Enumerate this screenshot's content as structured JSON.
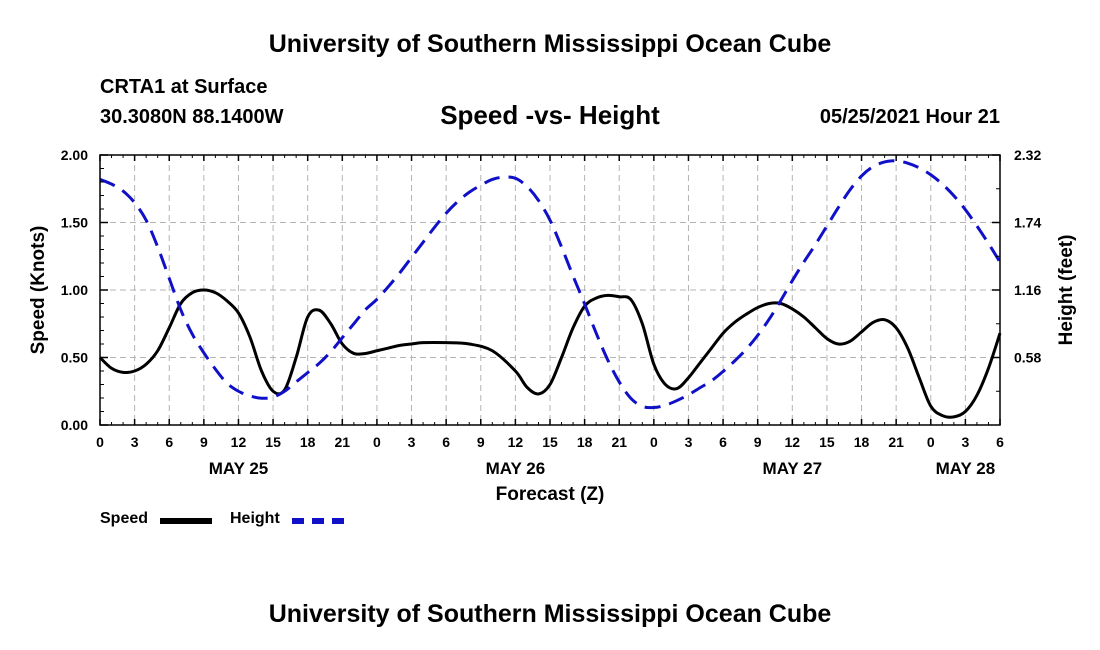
{
  "header": {
    "title": "University of Southern Mississippi Ocean Cube",
    "station": "CRTA1 at Surface",
    "coordinates": "30.3080N  88.1400W",
    "chart_title": "Speed -vs- Height",
    "datetime": "05/25/2021 Hour 21"
  },
  "footer": {
    "title": "University of Southern Mississippi Ocean Cube"
  },
  "legend": {
    "speed_label": "Speed",
    "height_label": "Height"
  },
  "colors": {
    "speed": "#000000",
    "height": "#1010c8",
    "grid": "#b4b4b4"
  },
  "chart_data": {
    "type": "line",
    "title": "Speed -vs- Height",
    "xlabel": "Forecast (Z)",
    "ylabel": "Speed (Knots)",
    "y2label": "Height (feet)",
    "xlim": [
      0,
      78
    ],
    "ylim": [
      0,
      2.0
    ],
    "y2lim": [
      0,
      2.32
    ],
    "grid": true,
    "x_ticks": [
      0,
      3,
      6,
      9,
      12,
      15,
      18,
      21,
      24,
      27,
      30,
      33,
      36,
      39,
      42,
      45,
      48,
      51,
      54,
      57,
      60,
      63,
      66,
      69,
      72,
      75,
      78
    ],
    "x_tick_labels": [
      "0",
      "3",
      "6",
      "9",
      "12",
      "15",
      "18",
      "21",
      "0",
      "3",
      "6",
      "9",
      "12",
      "15",
      "18",
      "21",
      "0",
      "3",
      "6",
      "9",
      "12",
      "15",
      "18",
      "21",
      "0",
      "3",
      "6"
    ],
    "day_labels": [
      {
        "x": 12,
        "label": "MAY 25"
      },
      {
        "x": 36,
        "label": "MAY 26"
      },
      {
        "x": 60,
        "label": "MAY 27"
      },
      {
        "x": 75,
        "label": "MAY 28"
      }
    ],
    "y_ticks": [
      0.0,
      0.5,
      1.0,
      1.5,
      2.0
    ],
    "y_tick_labels": [
      "0.00",
      "0.50",
      "1.00",
      "1.50",
      "2.00"
    ],
    "y2_ticks": [
      0.58,
      1.16,
      1.74,
      2.32
    ],
    "y2_tick_labels": [
      "0.58",
      "1.16",
      "1.74",
      "2.32"
    ],
    "series": [
      {
        "name": "Speed",
        "axis": "left",
        "x": [
          0,
          1,
          2,
          3,
          4,
          5,
          6,
          7,
          8,
          9,
          10,
          11,
          12,
          13,
          14,
          15,
          16,
          17,
          18,
          19,
          20,
          21,
          22,
          23,
          24,
          25,
          26,
          27,
          28,
          30,
          32,
          34,
          36,
          37,
          38,
          39,
          40,
          41,
          42,
          43,
          44,
          45,
          46,
          47,
          48,
          49,
          50,
          51,
          52,
          53,
          54,
          55,
          56,
          57,
          58,
          59,
          60,
          61,
          62,
          63,
          64,
          65,
          66,
          67,
          68,
          69,
          70,
          71,
          72,
          73,
          74,
          75,
          76,
          77,
          78
        ],
        "values": [
          0.5,
          0.42,
          0.39,
          0.4,
          0.45,
          0.55,
          0.72,
          0.9,
          0.98,
          1.0,
          0.98,
          0.92,
          0.83,
          0.65,
          0.4,
          0.25,
          0.26,
          0.5,
          0.8,
          0.85,
          0.75,
          0.6,
          0.53,
          0.53,
          0.55,
          0.57,
          0.59,
          0.6,
          0.61,
          0.61,
          0.6,
          0.55,
          0.4,
          0.28,
          0.23,
          0.3,
          0.5,
          0.72,
          0.88,
          0.94,
          0.96,
          0.95,
          0.93,
          0.75,
          0.45,
          0.3,
          0.27,
          0.35,
          0.46,
          0.57,
          0.68,
          0.76,
          0.82,
          0.87,
          0.9,
          0.9,
          0.86,
          0.8,
          0.72,
          0.64,
          0.6,
          0.62,
          0.69,
          0.76,
          0.78,
          0.72,
          0.57,
          0.35,
          0.14,
          0.07,
          0.06,
          0.1,
          0.22,
          0.42,
          0.68
        ]
      },
      {
        "name": "Height",
        "axis": "right",
        "x": [
          0,
          1,
          2,
          3,
          4,
          5,
          6,
          7,
          8,
          9,
          10,
          11,
          12,
          13,
          14,
          15,
          16,
          17,
          18,
          19,
          20,
          21,
          22,
          23,
          24,
          25,
          26,
          27,
          28,
          29,
          30,
          31,
          32,
          33,
          34,
          35,
          36,
          37,
          38,
          39,
          40,
          41,
          42,
          43,
          44,
          45,
          46,
          47,
          48,
          49,
          50,
          51,
          52,
          53,
          54,
          55,
          56,
          57,
          58,
          59,
          60,
          61,
          62,
          63,
          64,
          65,
          66,
          67,
          68,
          69,
          70,
          71,
          72,
          73,
          74,
          75,
          76,
          77,
          78
        ],
        "values": [
          2.11,
          2.07,
          2.01,
          1.91,
          1.76,
          1.53,
          1.26,
          0.99,
          0.78,
          0.62,
          0.48,
          0.36,
          0.29,
          0.25,
          0.23,
          0.24,
          0.29,
          0.37,
          0.45,
          0.53,
          0.63,
          0.75,
          0.87,
          0.99,
          1.08,
          1.19,
          1.31,
          1.44,
          1.57,
          1.7,
          1.82,
          1.92,
          2.0,
          2.06,
          2.11,
          2.13,
          2.12,
          2.05,
          1.93,
          1.76,
          1.53,
          1.28,
          1.04,
          0.79,
          0.56,
          0.37,
          0.23,
          0.16,
          0.15,
          0.17,
          0.21,
          0.26,
          0.32,
          0.38,
          0.46,
          0.55,
          0.65,
          0.77,
          0.91,
          1.07,
          1.24,
          1.4,
          1.55,
          1.71,
          1.87,
          2.02,
          2.14,
          2.22,
          2.26,
          2.27,
          2.25,
          2.21,
          2.15,
          2.07,
          1.97,
          1.85,
          1.71,
          1.56,
          1.4
        ]
      }
    ]
  }
}
